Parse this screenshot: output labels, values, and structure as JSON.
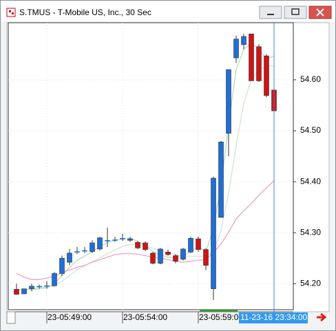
{
  "window": {
    "title": "S.TMUS - T-Mobile US, Inc., 30 Sec"
  },
  "chart_data": {
    "type": "candlestick",
    "categories": [
      null,
      null,
      null,
      null,
      "23-05:49:00",
      null,
      null,
      null,
      null,
      null,
      null,
      null,
      null,
      null,
      "23-05:54:00",
      null,
      null,
      null,
      null,
      null,
      null,
      null,
      null,
      null,
      "23-05:59:00",
      null,
      null,
      null,
      null,
      null,
      null,
      null,
      null,
      null,
      null
    ],
    "open": [
      54.189,
      54.18,
      54.19,
      54.195,
      54.196,
      54.196,
      54.22,
      54.242,
      54.263,
      54.265,
      54.263,
      54.268,
      54.285,
      54.286,
      54.289,
      54.285,
      54.281,
      54.28,
      54.26,
      54.24,
      54.262,
      54.255,
      54.248,
      54.262,
      54.288,
      54.267,
      54.19,
      54.33,
      54.495,
      54.643,
      54.669,
      54.69,
      54.665,
      54.647,
      54.58
    ],
    "high": [
      54.2,
      54.19,
      54.2,
      54.198,
      54.205,
      54.223,
      54.255,
      54.268,
      54.272,
      54.272,
      54.285,
      54.292,
      54.31,
      54.292,
      54.298,
      54.292,
      54.284,
      54.283,
      54.262,
      54.27,
      54.267,
      54.258,
      54.27,
      54.292,
      54.292,
      54.27,
      54.41,
      54.48,
      54.62,
      54.687,
      54.69,
      54.69,
      54.67,
      54.65,
      54.593
    ],
    "low": [
      54.179,
      54.18,
      54.185,
      54.19,
      54.19,
      54.194,
      54.215,
      54.236,
      54.258,
      54.26,
      54.26,
      54.265,
      54.272,
      54.282,
      54.284,
      54.282,
      54.268,
      54.264,
      54.238,
      54.238,
      54.255,
      54.24,
      54.245,
      54.26,
      54.262,
      54.227,
      54.168,
      54.33,
      54.45,
      54.633,
      54.66,
      54.598,
      54.596,
      54.566,
      54.506
    ],
    "close": [
      54.179,
      54.19,
      54.195,
      54.195,
      54.196,
      54.22,
      54.25,
      54.26,
      54.263,
      54.265,
      54.28,
      54.29,
      54.285,
      54.286,
      54.289,
      54.288,
      54.27,
      54.267,
      54.24,
      54.268,
      54.257,
      54.244,
      54.268,
      54.289,
      54.267,
      54.236,
      54.407,
      54.478,
      54.62,
      54.68,
      54.685,
      54.598,
      54.598,
      54.569,
      54.539
    ],
    "up_color": "#1f6fd6",
    "down_color": "#d01414",
    "series": [
      {
        "color": "#b8dcb8",
        "values": [
          54.189,
          54.187,
          54.189,
          54.192,
          54.193,
          54.2,
          54.216,
          54.232,
          54.246,
          54.254,
          54.263,
          54.273,
          54.281,
          54.286,
          54.287,
          54.289,
          54.283,
          54.275,
          54.263,
          54.257,
          54.252,
          54.251,
          54.254,
          54.263,
          54.273,
          54.262,
          54.31,
          54.391,
          54.512,
          54.62,
          54.66,
          54.671,
          54.66,
          54.64,
          54.647
        ]
      },
      {
        "color": "#cfe6cf",
        "values": [
          54.188,
          54.187,
          54.188,
          54.189,
          54.192,
          54.196,
          54.205,
          54.216,
          54.227,
          54.235,
          54.243,
          54.251,
          54.259,
          54.266,
          54.273,
          54.277,
          54.277,
          54.274,
          54.27,
          54.265,
          54.261,
          54.257,
          54.254,
          54.254,
          54.254,
          54.252,
          54.263,
          54.304,
          54.378,
          54.472,
          54.553,
          54.6,
          54.62,
          54.627,
          54.627
        ]
      },
      {
        "color": "#f0a0c8",
        "values": [
          54.22,
          54.213,
          54.208,
          54.208,
          54.211,
          54.215,
          54.222,
          54.227,
          54.232,
          54.236,
          54.242,
          54.247,
          54.252,
          54.257,
          54.259,
          54.259,
          54.258,
          54.255,
          54.252,
          54.25,
          54.247,
          54.244,
          54.242,
          54.244,
          54.246,
          54.247,
          54.261,
          54.278,
          54.301,
          54.327,
          54.343,
          54.357,
          54.374,
          54.388,
          54.402
        ]
      }
    ],
    "ylim": [
      54.149,
      54.712
    ],
    "yticks": [
      {
        "value": 54.2,
        "label": "54.20"
      },
      {
        "value": 54.3,
        "label": "54.30"
      },
      {
        "value": 54.4,
        "label": "54.40"
      },
      {
        "value": 54.5,
        "label": "54.50"
      },
      {
        "value": 54.6,
        "label": "54.60"
      }
    ],
    "grid": true,
    "crosshair_label": "11-23-16 23:34:00"
  }
}
